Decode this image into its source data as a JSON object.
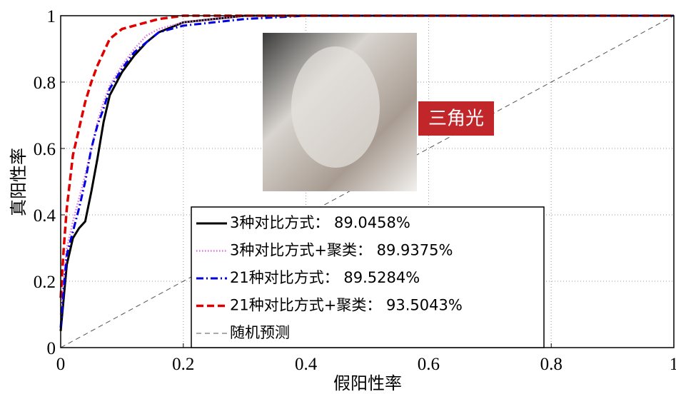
{
  "chart_data": {
    "type": "line",
    "x_label": "假阳性率",
    "y_label": "真阳性率",
    "annotation": "三角光",
    "x": [
      0,
      0.005,
      0.01,
      0.02,
      0.03,
      0.04,
      0.05,
      0.06,
      0.07,
      0.08,
      0.1,
      0.12,
      0.14,
      0.16,
      0.2,
      0.25,
      0.3,
      0.4,
      0.6,
      0.8,
      1
    ],
    "series": [
      {
        "name": "3种对比方式： 89.0458%",
        "color": "#000000",
        "dash": "solid",
        "values": [
          0.05,
          0.15,
          0.25,
          0.33,
          0.36,
          0.38,
          0.47,
          0.57,
          0.68,
          0.76,
          0.83,
          0.88,
          0.92,
          0.95,
          0.98,
          0.99,
          1,
          1,
          1,
          1,
          1
        ]
      },
      {
        "name": "3种对比方式+聚类： 89.9375%",
        "color": "#e070e0",
        "dash": "dot",
        "values": [
          0.1,
          0.2,
          0.3,
          0.38,
          0.45,
          0.52,
          0.6,
          0.68,
          0.74,
          0.79,
          0.85,
          0.9,
          0.94,
          0.96,
          0.98,
          0.99,
          1,
          1,
          1,
          1,
          1
        ]
      },
      {
        "name": "21种对比方式： 89.5284%",
        "color": "#0000e0",
        "dash": "dashdot",
        "values": [
          0.06,
          0.18,
          0.28,
          0.35,
          0.42,
          0.5,
          0.6,
          0.67,
          0.72,
          0.78,
          0.84,
          0.89,
          0.92,
          0.95,
          0.97,
          0.98,
          0.99,
          1,
          1,
          1,
          1
        ]
      },
      {
        "name": "21种对比方式+聚类： 93.5043%",
        "color": "#e00000",
        "dash": "dash",
        "values": [
          0.15,
          0.3,
          0.42,
          0.58,
          0.66,
          0.74,
          0.8,
          0.85,
          0.89,
          0.93,
          0.96,
          0.97,
          0.98,
          0.99,
          1,
          1,
          1,
          1,
          1,
          1,
          1
        ]
      },
      {
        "name": "随机预测",
        "color": "#555555",
        "dash": "thin",
        "values": [
          0,
          0.005,
          0.01,
          0.02,
          0.03,
          0.04,
          0.05,
          0.06,
          0.07,
          0.08,
          0.1,
          0.12,
          0.14,
          0.16,
          0.2,
          0.25,
          0.3,
          0.4,
          0.6,
          0.8,
          1
        ]
      }
    ],
    "xlim": [
      0,
      1
    ],
    "ylim": [
      0,
      1
    ],
    "xticks": [
      0,
      0.2,
      0.4,
      0.6,
      0.8,
      1
    ],
    "yticks": [
      0,
      0.2,
      0.4,
      0.6,
      0.8,
      1
    ],
    "grid": true
  }
}
